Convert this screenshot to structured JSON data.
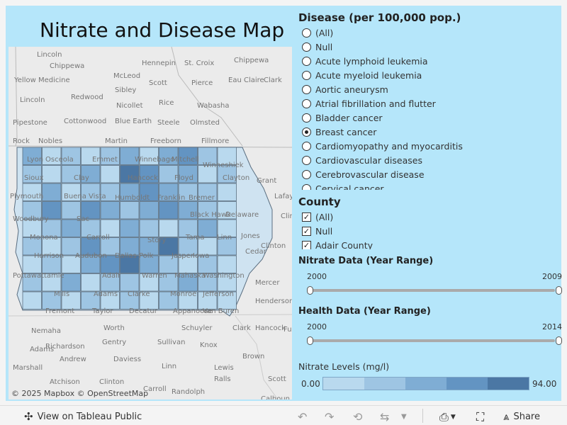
{
  "dashboard": {
    "title": "Nitrate and Disease Map"
  },
  "map": {
    "attribution": "© 2025 Mapbox  © OpenStreetMap",
    "place_labels": [
      "Lincoln",
      "Chippewa",
      "Hennepin",
      "St. Croix",
      "Chippewa",
      "Yellow Medicine",
      "McLeod",
      "Scott",
      "Pierce",
      "Eau Claire",
      "Clark",
      "Sibley",
      "Lincoln",
      "Redwood",
      "Rice",
      "Wabasha",
      "Nicollet",
      "Pipestone",
      "Cottonwood",
      "Blue Earth",
      "Steele",
      "Olmsted",
      "Rock",
      "Nobles",
      "Martin",
      "Freeborn",
      "Fillmore",
      "Lyon",
      "Osceola",
      "Emmet",
      "Winnebago",
      "Mitchell",
      "Winneshiek",
      "Sioux",
      "Clay",
      "Hancock",
      "Floyd",
      "Clayton",
      "Grant",
      "Lafayette",
      "Plymouth",
      "Buena Vista",
      "Humboldt",
      "Franklin",
      "Bremer",
      "Woodbury",
      "Sac",
      "Black Hawk",
      "Delaware",
      "Clinton",
      "Monona",
      "Carroll",
      "Story",
      "Tama",
      "Linn",
      "Jones",
      "Clinton",
      "Harrison",
      "Audubon",
      "Dallas",
      "Polk",
      "Jasper",
      "Iowa",
      "Cedar",
      "Pottawattamie",
      "Adair",
      "Warren",
      "Mahaska",
      "Washington",
      "Mercer",
      "Mills",
      "Adams",
      "Clarke",
      "Monroe",
      "Jefferson",
      "Henderson",
      "Fremont",
      "Taylor",
      "Decatur",
      "Appanoose",
      "Van Buren",
      "Worth",
      "Schuyler",
      "Clark",
      "Hancock",
      "Fulton",
      "Nemaha",
      "Gentry",
      "Sullivan",
      "Adams",
      "Richardson",
      "Knox",
      "Andrew",
      "Daviess",
      "Brown",
      "Linn",
      "Marshall",
      "Lewis",
      "Atchison",
      "Clinton",
      "Carroll",
      "Ralls",
      "Scott",
      "Randolph",
      "Calhoun"
    ]
  },
  "disease_filter": {
    "title": "Disease (per 100,000 pop.)",
    "options": [
      {
        "label": "(All)",
        "selected": false
      },
      {
        "label": "Null",
        "selected": false
      },
      {
        "label": "Acute lymphoid leukemia",
        "selected": false
      },
      {
        "label": "Acute myeloid leukemia",
        "selected": false
      },
      {
        "label": "Aortic aneurysm",
        "selected": false
      },
      {
        "label": "Atrial fibrillation and flutter",
        "selected": false
      },
      {
        "label": "Bladder cancer",
        "selected": false
      },
      {
        "label": "Breast cancer",
        "selected": true
      },
      {
        "label": "Cardiomyopathy and myocarditis",
        "selected": false
      },
      {
        "label": "Cardiovascular diseases",
        "selected": false
      },
      {
        "label": "Cerebrovascular disease",
        "selected": false
      },
      {
        "label": "Cervical cancer",
        "selected": false
      }
    ]
  },
  "county_filter": {
    "title": "County",
    "options": [
      {
        "label": "(All)",
        "checked": true
      },
      {
        "label": "Null",
        "checked": true
      },
      {
        "label": "Adair County",
        "checked": true
      }
    ]
  },
  "nitrate_range": {
    "title": "Nitrate Data (Year Range)",
    "min": "2000",
    "max": "2009"
  },
  "health_range": {
    "title": "Health Data (Year Range)",
    "min": "2000",
    "max": "2014"
  },
  "legend": {
    "title": "Nitrate Levels (mg/l)",
    "min_label": "0.00",
    "max_label": "94.00",
    "colors": [
      "#b9d9ee",
      "#9ec5e3",
      "#7fadd4",
      "#6394c2",
      "#4b77a4"
    ]
  },
  "toolbar": {
    "view_label": "View on Tableau Public",
    "share_label": "Share"
  }
}
